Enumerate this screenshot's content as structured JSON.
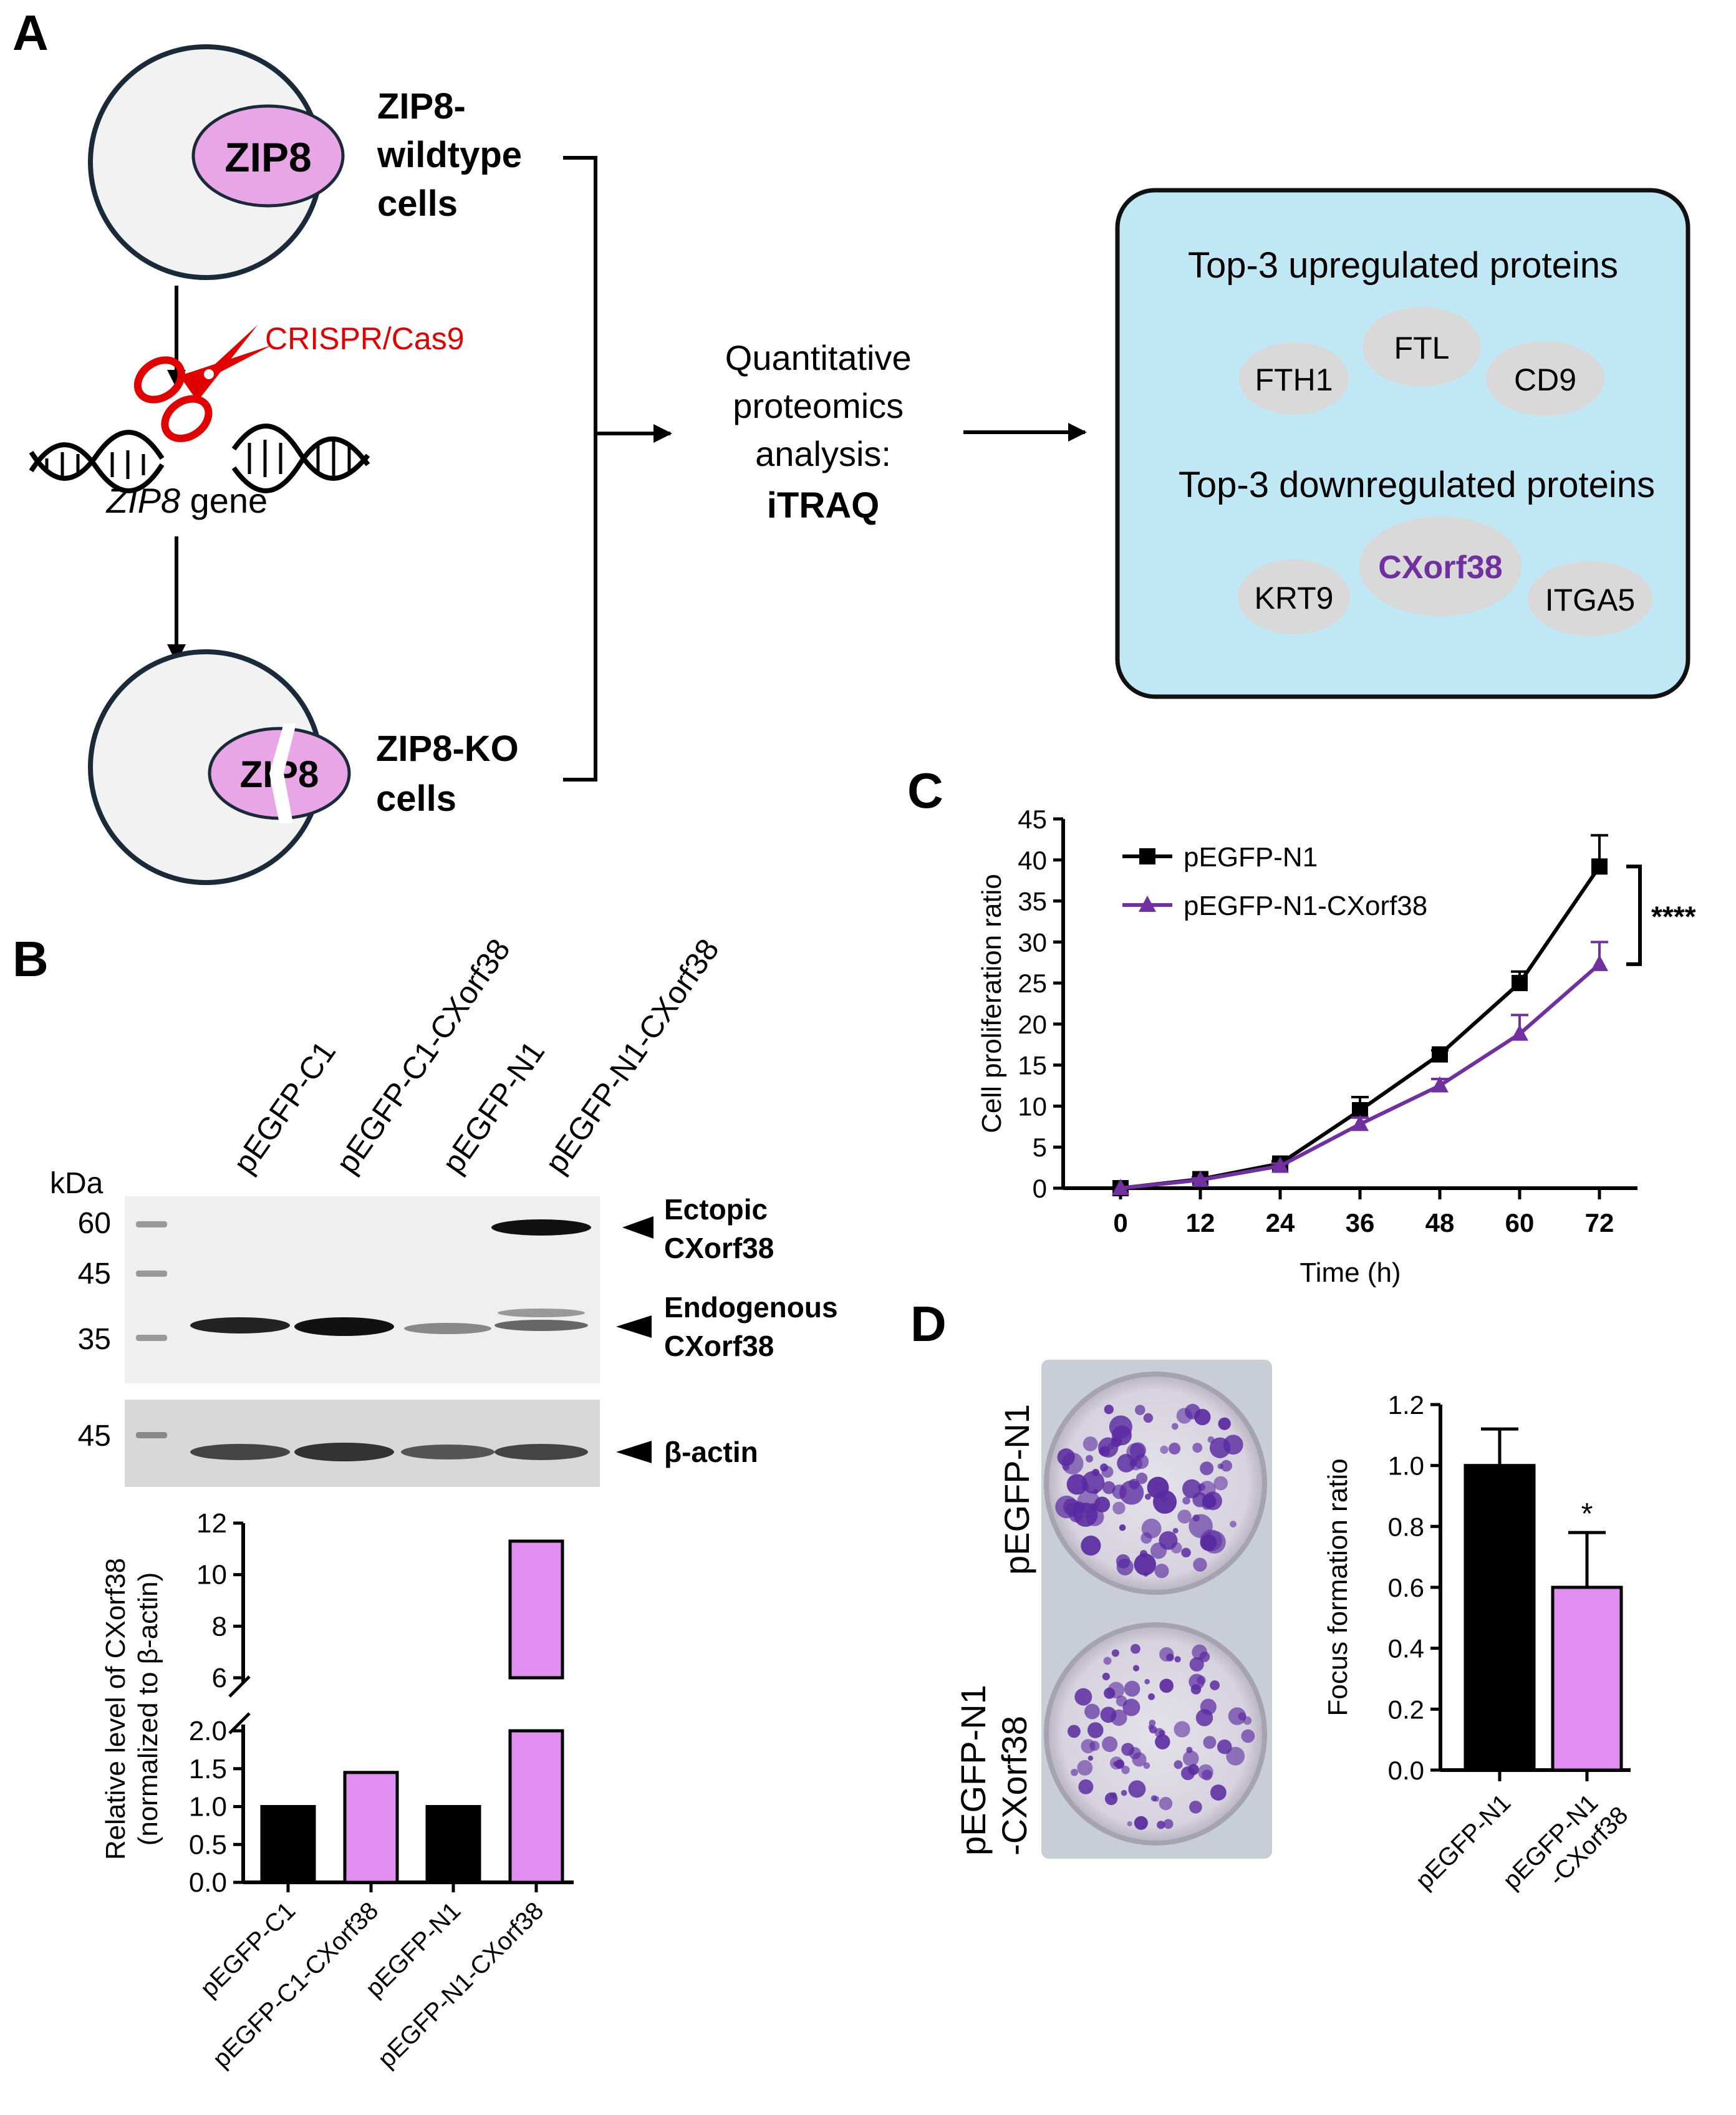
{
  "panels": {
    "a": "A",
    "b": "B",
    "c": "C",
    "d": "D"
  },
  "panel_a": {
    "cell_wt_protein": "ZIP8",
    "cell_wt_label": [
      "ZIP8-",
      "wildtype",
      "cells"
    ],
    "crispr": "CRISPR/Cas9",
    "gene_italic": "ZIP8",
    "gene_word": " gene",
    "cell_ko_protein": "ZIP8",
    "cell_ko_label": [
      "ZIP8-KO",
      "cells"
    ],
    "method": [
      "Quantitative",
      "proteomics",
      "analysis:"
    ],
    "method_bold": "iTRAQ",
    "up_title": "Top-3 upregulated proteins",
    "up_proteins": [
      "FTH1",
      "FTL",
      "CD9"
    ],
    "down_title": "Top-3 downregulated proteins",
    "down_proteins": [
      "KRT9",
      "CXorf38",
      "ITGA5"
    ],
    "highlight_color": "#7030a0"
  },
  "panel_b": {
    "lanes": [
      "pEGFP-C1",
      "pEGFP-C1-CXorf38",
      "pEGFP-N1",
      "pEGFP-N1-CXorf38"
    ],
    "kda_label": "kDa",
    "markers_main": [
      "60",
      "45",
      "35"
    ],
    "marker_actin": "45",
    "band_labels": [
      [
        "Ectopic",
        "CXorf38"
      ],
      [
        "Endogenous",
        "CXorf38"
      ],
      [
        "β-actin"
      ]
    ]
  },
  "chart_data": [
    {
      "panel": "B",
      "type": "bar",
      "categories": [
        "pEGFP-C1",
        "pEGFP-C1-CXorf38",
        "pEGFP-N1",
        "pEGFP-N1-CXorf38"
      ],
      "values": [
        1.0,
        1.45,
        1.0,
        11.3
      ],
      "colors": [
        "#000000",
        "#e08ef0",
        "#000000",
        "#e08ef0"
      ],
      "ylabel": [
        "Relative level of CXorf38",
        "(normalized to β-actin)"
      ],
      "axis_break": [
        2.0,
        6
      ],
      "lower_ticks": [
        "0.0",
        "0.5",
        "1.0",
        "1.5",
        "2.0"
      ],
      "upper_ticks": [
        "6",
        "8",
        "10",
        "12"
      ],
      "ylim": [
        0,
        12
      ]
    },
    {
      "panel": "C",
      "type": "line",
      "xlabel": "Time (h)",
      "ylabel": "Cell proliferation ratio",
      "x": [
        0,
        12,
        24,
        36,
        48,
        60,
        72
      ],
      "xticks": [
        "0",
        "12",
        "24",
        "36",
        "48",
        "60",
        "72"
      ],
      "yticks": [
        "0",
        "5",
        "10",
        "15",
        "20",
        "25",
        "30",
        "35",
        "40",
        "45"
      ],
      "xlim": [
        0,
        72
      ],
      "ylim": [
        0,
        45
      ],
      "series": [
        {
          "name": "pEGFP-N1",
          "marker": "square",
          "color": "#000000",
          "values": [
            0,
            1.1,
            3.0,
            9.5,
            16.3,
            25.0,
            39.2
          ],
          "errors": [
            0,
            0.2,
            0.3,
            1.6,
            0.5,
            1.4,
            3.8
          ]
        },
        {
          "name": "pEGFP-N1-CXorf38",
          "marker": "triangle",
          "color": "#7030a0",
          "values": [
            0,
            1.0,
            2.7,
            7.8,
            12.5,
            18.8,
            27.3
          ],
          "errors": [
            0,
            0.2,
            0.3,
            0.8,
            0.8,
            2.3,
            2.7
          ]
        }
      ],
      "significance": "****"
    },
    {
      "panel": "D",
      "type": "bar",
      "categories": [
        "pEGFP-N1",
        "pEGFP-N1\n-CXorf38"
      ],
      "values": [
        1.0,
        0.6
      ],
      "errors": [
        0.12,
        0.18
      ],
      "colors": [
        "#000000",
        "#e08ef0"
      ],
      "ylabel": "Focus formation ratio",
      "yticks": [
        "0.0",
        "0.2",
        "0.4",
        "0.6",
        "0.8",
        "1.0",
        "1.2"
      ],
      "ylim": [
        0,
        1.2
      ],
      "significance": [
        "",
        "*"
      ]
    }
  ],
  "panel_d": {
    "plate_labels": [
      [
        "pEGFP-N1"
      ],
      [
        "pEGFP-N1",
        "-CXorf38"
      ]
    ],
    "colony_color": "#5a2aa0"
  }
}
